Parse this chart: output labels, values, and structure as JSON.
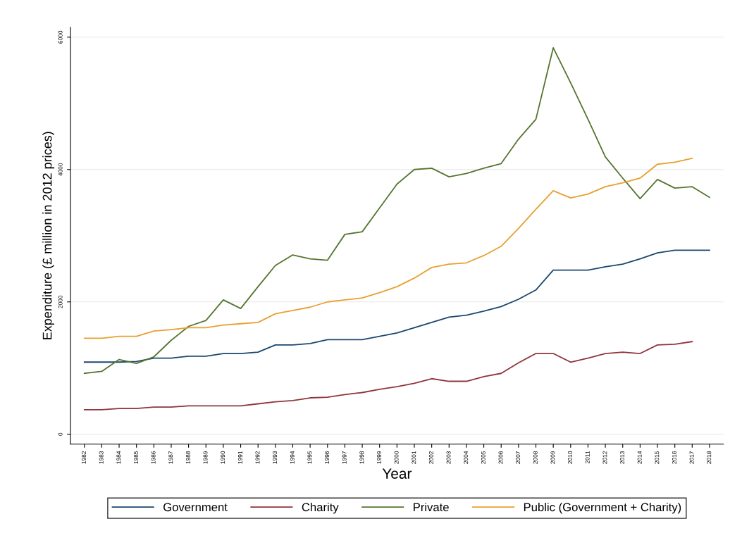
{
  "chart_data": {
    "type": "line",
    "xlabel": "Year",
    "ylabel": "Expenditure (£ million in 2012 prices)",
    "categories": [
      "1982",
      "1983",
      "1984",
      "1985",
      "1986",
      "1987",
      "1988",
      "1989",
      "1990",
      "1991",
      "1992",
      "1993",
      "1994",
      "1995",
      "1996",
      "1997",
      "1998",
      "1999",
      "2000",
      "2001",
      "2002",
      "2003",
      "2004",
      "2005",
      "2006",
      "2007",
      "2008",
      "2009",
      "2010",
      "2011",
      "2012",
      "2013",
      "2014",
      "2015",
      "2016",
      "2017",
      "2018"
    ],
    "series": [
      {
        "name": "Government",
        "color": "#1a476f",
        "values": [
          1090,
          1090,
          1090,
          1100,
          1150,
          1150,
          1180,
          1180,
          1220,
          1220,
          1240,
          1350,
          1350,
          1370,
          1430,
          1430,
          1430,
          1480,
          1530,
          1610,
          1690,
          1770,
          1800,
          1860,
          1930,
          2040,
          2180,
          2480,
          2480,
          2480,
          2530,
          2570,
          2650,
          2740,
          2780,
          2780,
          2780
        ]
      },
      {
        "name": "Charity",
        "color": "#90353b",
        "values": [
          370,
          370,
          390,
          390,
          410,
          410,
          430,
          430,
          430,
          430,
          460,
          490,
          510,
          550,
          560,
          600,
          630,
          680,
          720,
          770,
          840,
          800,
          800,
          870,
          920,
          1080,
          1220,
          1220,
          1090,
          1150,
          1220,
          1240,
          1220,
          1350,
          1360,
          1400,
          null
        ]
      },
      {
        "name": "Private",
        "color": "#55752f",
        "values": [
          920,
          950,
          1130,
          1070,
          1170,
          1420,
          1630,
          1720,
          2030,
          1900,
          2230,
          2550,
          2710,
          2650,
          2630,
          3020,
          3060,
          3420,
          3780,
          4000,
          4020,
          3890,
          3940,
          4020,
          4090,
          4460,
          4760,
          5840,
          5310,
          4760,
          4190,
          3870,
          3560,
          3850,
          3720,
          3740,
          3580
        ]
      },
      {
        "name": "Public (Government + Charity)",
        "color": "#e8a030",
        "values": [
          1450,
          1450,
          1480,
          1480,
          1560,
          1580,
          1610,
          1610,
          1650,
          1670,
          1690,
          1820,
          1870,
          1920,
          2000,
          2030,
          2060,
          2140,
          2230,
          2360,
          2520,
          2570,
          2590,
          2700,
          2840,
          3110,
          3400,
          3680,
          3570,
          3630,
          3740,
          3800,
          3870,
          4080,
          4110,
          4170,
          null
        ]
      }
    ],
    "ylim": [
      -150,
      6150
    ],
    "yticks": [
      0,
      2000,
      4000,
      6000
    ],
    "grid": "y",
    "legend": "bottom"
  }
}
